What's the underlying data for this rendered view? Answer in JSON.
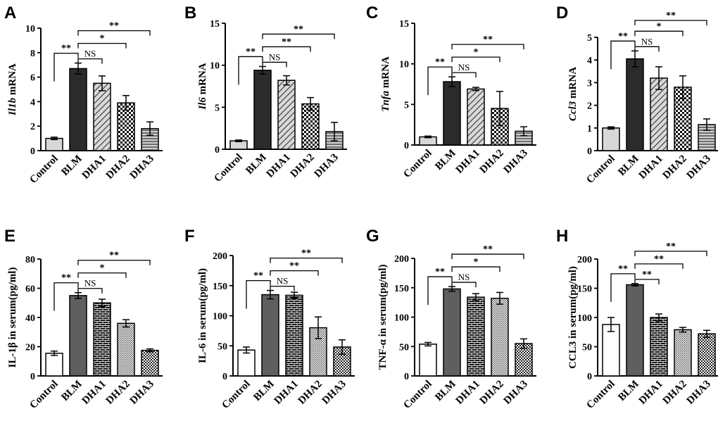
{
  "chart_data": [
    {
      "panel": "A",
      "type": "bar",
      "categories": [
        "Control",
        "BLM",
        "DHA1",
        "DHA2",
        "DHA3"
      ],
      "values": [
        1.0,
        6.7,
        5.5,
        3.9,
        1.8
      ],
      "errors": [
        0.1,
        0.45,
        0.6,
        0.6,
        0.55
      ],
      "ylabel_italic": "Il1b",
      "ylabel_rest": " mRNA",
      "ylim": [
        0,
        10
      ],
      "yticks": [
        0,
        2,
        4,
        6,
        8,
        10
      ],
      "patterns": [
        "light",
        "dark",
        "diag",
        "check",
        "hlines"
      ],
      "comparisons": [
        {
          "from": 0,
          "to": 1,
          "label": "**"
        },
        {
          "from": 1,
          "to": 2,
          "label": "NS"
        },
        {
          "from": 1,
          "to": 3,
          "label": "*"
        },
        {
          "from": 1,
          "to": 4,
          "label": "**"
        }
      ]
    },
    {
      "panel": "B",
      "type": "bar",
      "categories": [
        "Control",
        "BLM",
        "DHA1",
        "DHA2",
        "DHA3"
      ],
      "values": [
        1.0,
        9.4,
        8.2,
        5.4,
        2.1
      ],
      "errors": [
        0.1,
        0.45,
        0.55,
        0.75,
        1.1
      ],
      "ylabel_italic": "Il6",
      "ylabel_rest": " mRNA",
      "ylim": [
        0,
        15
      ],
      "yticks": [
        0,
        5,
        10,
        15
      ],
      "patterns": [
        "light",
        "dark",
        "diag",
        "check",
        "hlines"
      ],
      "comparisons": [
        {
          "from": 0,
          "to": 1,
          "label": "**"
        },
        {
          "from": 1,
          "to": 2,
          "label": "NS"
        },
        {
          "from": 1,
          "to": 3,
          "label": "**"
        },
        {
          "from": 1,
          "to": 4,
          "label": "**"
        }
      ]
    },
    {
      "panel": "C",
      "type": "bar",
      "categories": [
        "Control",
        "BLM",
        "DHA1",
        "DHA2",
        "DHA3"
      ],
      "values": [
        1.0,
        7.8,
        6.9,
        4.5,
        1.7
      ],
      "errors": [
        0.1,
        0.6,
        0.2,
        2.1,
        0.55
      ],
      "ylabel_italic": "Tnfa",
      "ylabel_rest": " mRNA",
      "ylim": [
        0,
        15
      ],
      "yticks": [
        0,
        5,
        10,
        15
      ],
      "patterns": [
        "light",
        "dark",
        "diag",
        "check",
        "hlines"
      ],
      "comparisons": [
        {
          "from": 0,
          "to": 1,
          "label": "**"
        },
        {
          "from": 1,
          "to": 2,
          "label": "NS"
        },
        {
          "from": 1,
          "to": 3,
          "label": "*"
        },
        {
          "from": 1,
          "to": 4,
          "label": "**"
        }
      ]
    },
    {
      "panel": "D",
      "type": "bar",
      "categories": [
        "Control",
        "BLM",
        "DHA1",
        "DHA2",
        "DHA3"
      ],
      "values": [
        1.0,
        4.05,
        3.2,
        2.8,
        1.15
      ],
      "errors": [
        0.05,
        0.35,
        0.5,
        0.5,
        0.25
      ],
      "ylabel_italic": "Ccl3",
      "ylabel_rest": " mRNA",
      "ylim": [
        0,
        5
      ],
      "yticks": [
        0,
        1,
        2,
        3,
        4,
        5
      ],
      "patterns": [
        "light",
        "dark",
        "diag",
        "check",
        "hlines"
      ],
      "comparisons": [
        {
          "from": 0,
          "to": 1,
          "label": "**"
        },
        {
          "from": 1,
          "to": 2,
          "label": "NS"
        },
        {
          "from": 1,
          "to": 3,
          "label": "*"
        },
        {
          "from": 1,
          "to": 4,
          "label": "**"
        }
      ]
    },
    {
      "panel": "E",
      "type": "bar",
      "categories": [
        "Control",
        "BLM",
        "DHA1",
        "DHA2",
        "DHA3"
      ],
      "values": [
        15.5,
        55,
        50,
        36,
        17.5
      ],
      "errors": [
        1.5,
        2.0,
        2.5,
        2.5,
        1.0
      ],
      "ylabel_italic": "",
      "ylabel_rest": "IL-1β in serum(pg/ml)",
      "ylim": [
        0,
        80
      ],
      "yticks": [
        0,
        20,
        40,
        60,
        80
      ],
      "patterns": [
        "white",
        "gray",
        "brick",
        "dots",
        "checksmall"
      ],
      "comparisons": [
        {
          "from": 0,
          "to": 1,
          "label": "**"
        },
        {
          "from": 1,
          "to": 2,
          "label": "NS"
        },
        {
          "from": 1,
          "to": 3,
          "label": "*"
        },
        {
          "from": 1,
          "to": 4,
          "label": "**"
        }
      ]
    },
    {
      "panel": "F",
      "type": "bar",
      "categories": [
        "Control",
        "BLM",
        "DHA1",
        "DHA2",
        "DHA3"
      ],
      "values": [
        43,
        135,
        134,
        80,
        48
      ],
      "errors": [
        5,
        7,
        5,
        18,
        12
      ],
      "ylabel_italic": "",
      "ylabel_rest": "IL-6 in serum(pg/ml)",
      "ylim": [
        0,
        200
      ],
      "yticks": [
        0,
        50,
        100,
        150,
        200
      ],
      "patterns": [
        "white",
        "gray",
        "brick",
        "dots",
        "checksmall"
      ],
      "comparisons": [
        {
          "from": 0,
          "to": 1,
          "label": "**"
        },
        {
          "from": 1,
          "to": 2,
          "label": "NS"
        },
        {
          "from": 1,
          "to": 3,
          "label": "**"
        },
        {
          "from": 1,
          "to": 4,
          "label": "**"
        }
      ]
    },
    {
      "panel": "G",
      "type": "bar",
      "categories": [
        "Control",
        "BLM",
        "DHA1",
        "DHA2",
        "DHA3"
      ],
      "values": [
        54,
        148,
        134,
        132,
        55
      ],
      "errors": [
        3,
        4,
        6,
        10,
        8
      ],
      "ylabel_italic": "",
      "ylabel_rest": "TNF-α in serum(pg/ml)",
      "ylim": [
        0,
        200
      ],
      "yticks": [
        0,
        50,
        100,
        150,
        200
      ],
      "patterns": [
        "white",
        "gray",
        "brick",
        "dots",
        "checksmall"
      ],
      "comparisons": [
        {
          "from": 0,
          "to": 1,
          "label": "**"
        },
        {
          "from": 1,
          "to": 2,
          "label": "NS"
        },
        {
          "from": 1,
          "to": 3,
          "label": "*"
        },
        {
          "from": 1,
          "to": 4,
          "label": "**"
        }
      ]
    },
    {
      "panel": "H",
      "type": "bar",
      "categories": [
        "Control",
        "BLM",
        "DHA1",
        "DHA2",
        "DHA3"
      ],
      "values": [
        88,
        156,
        100,
        79,
        72
      ],
      "errors": [
        12,
        2,
        6,
        4,
        6
      ],
      "ylabel_italic": "",
      "ylabel_rest": "CCL3 in serum(pg/ml)",
      "ylim": [
        0,
        200
      ],
      "yticks": [
        0,
        50,
        100,
        150,
        200
      ],
      "patterns": [
        "white",
        "gray",
        "brick",
        "dots",
        "checksmall"
      ],
      "comparisons": [
        {
          "from": 0,
          "to": 1,
          "label": "**"
        },
        {
          "from": 1,
          "to": 2,
          "label": "**"
        },
        {
          "from": 1,
          "to": 3,
          "label": "**"
        },
        {
          "from": 1,
          "to": 4,
          "label": "**"
        }
      ]
    }
  ]
}
